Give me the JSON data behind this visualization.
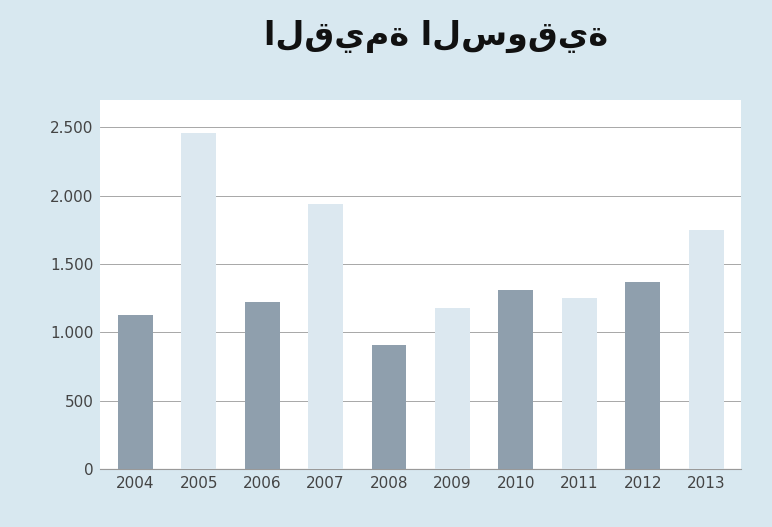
{
  "title": "القيمة السوقية",
  "years": [
    "2004",
    "2005",
    "2006",
    "2007",
    "2008",
    "2009",
    "2010",
    "2011",
    "2012",
    "2013"
  ],
  "values": [
    1130,
    2460,
    1220,
    1940,
    910,
    1180,
    1310,
    1250,
    1370,
    1750
  ],
  "bar_colors": [
    "#8f9fad",
    "#dce8f0",
    "#8f9fad",
    "#dce8f0",
    "#8f9fad",
    "#dce8f0",
    "#8f9fad",
    "#dce8f0",
    "#8f9fad",
    "#dce8f0"
  ],
  "ylim": [
    0,
    2700
  ],
  "yticks": [
    0,
    500,
    1000,
    1500,
    2000,
    2500
  ],
  "ytick_labels": [
    "0",
    "500",
    "1.000",
    "1.500",
    "2.000",
    "2.500"
  ],
  "background_color": "#d8e8f0",
  "plot_bg_color": "#ffffff",
  "grid_color": "#999999",
  "title_fontsize": 24,
  "tick_fontsize": 11,
  "bar_width": 0.55
}
